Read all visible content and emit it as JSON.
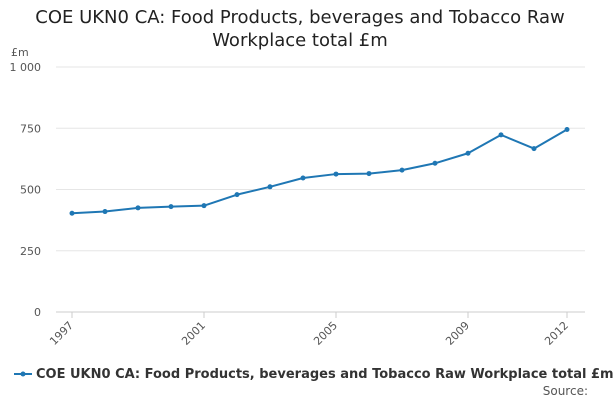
{
  "chart_data": {
    "type": "line",
    "title_lines": [
      "COE UKN0 CA: Food Products, beverages and Tobacco Raw",
      "Workplace total £m"
    ],
    "ylabel": "£m",
    "ylim": [
      0,
      1000
    ],
    "y_ticks": [
      0,
      250,
      500,
      750,
      1000
    ],
    "y_tick_labels": [
      "0",
      "250",
      "500",
      "750",
      "1 000"
    ],
    "x_tick_labels": [
      "1997",
      "2001",
      "2005",
      "2009",
      "2012"
    ],
    "grid": true,
    "series": [
      {
        "name": "COE UKN0 CA: Food Products, beverages and Tobacco Raw Workplace total £m",
        "color": "#1f77b4",
        "x": [
          1997,
          1998,
          1999,
          2000,
          2001,
          2002,
          2003,
          2004,
          2005,
          2006,
          2007,
          2008,
          2009,
          2010,
          2011,
          2012
        ],
        "values": [
          403,
          410,
          425,
          430,
          434,
          479,
          511,
          547,
          563,
          565,
          579,
          607,
          648,
          723,
          667,
          745
        ]
      }
    ]
  },
  "legend": {
    "label": "COE UKN0 CA: Food Products, beverages and Tobacco Raw Workplace total £m"
  },
  "footer": {
    "source_label": "Source:"
  }
}
